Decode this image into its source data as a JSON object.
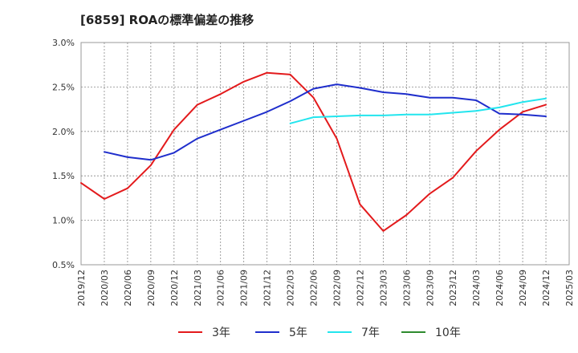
{
  "chart_data": {
    "type": "line",
    "title": "[6859]  ROAの標準偏差の推移",
    "xlabel": "",
    "ylabel": "",
    "ylim": [
      0.5,
      3.0
    ],
    "yticks": [
      "0.5%",
      "1.0%",
      "1.5%",
      "2.0%",
      "2.5%",
      "3.0%"
    ],
    "x": [
      "2019/12",
      "2020/03",
      "2020/06",
      "2020/09",
      "2020/12",
      "2021/03",
      "2021/06",
      "2021/09",
      "2021/12",
      "2022/03",
      "2022/06",
      "2022/09",
      "2022/12",
      "2023/03",
      "2023/06",
      "2023/09",
      "2023/12",
      "2024/03",
      "2024/06",
      "2024/09",
      "2024/12",
      "2025/03"
    ],
    "grid": true,
    "legend_position": "bottom",
    "series": [
      {
        "name": "3年",
        "color": "#e31a1c",
        "values": [
          1.42,
          1.24,
          1.36,
          1.62,
          2.02,
          2.3,
          2.42,
          2.56,
          2.66,
          2.64,
          2.38,
          1.92,
          1.18,
          0.88,
          1.06,
          1.3,
          1.48,
          1.78,
          2.02,
          2.22,
          2.3,
          null
        ]
      },
      {
        "name": "5年",
        "color": "#1f2ecc",
        "values": [
          null,
          1.77,
          1.71,
          1.68,
          1.76,
          1.92,
          2.02,
          2.12,
          2.22,
          2.34,
          2.48,
          2.53,
          2.49,
          2.44,
          2.42,
          2.38,
          2.38,
          2.35,
          2.2,
          2.19,
          2.17,
          null
        ]
      },
      {
        "name": "7年",
        "color": "#22e5ee",
        "values": [
          null,
          null,
          null,
          null,
          null,
          null,
          null,
          null,
          null,
          2.09,
          2.16,
          2.17,
          2.18,
          2.18,
          2.19,
          2.19,
          2.21,
          2.23,
          2.27,
          2.33,
          2.37,
          null
        ]
      },
      {
        "name": "10年",
        "color": "#2e8b2e",
        "values": [
          null,
          null,
          null,
          null,
          null,
          null,
          null,
          null,
          null,
          null,
          null,
          null,
          null,
          null,
          null,
          null,
          null,
          null,
          null,
          null,
          null,
          null
        ]
      }
    ]
  }
}
